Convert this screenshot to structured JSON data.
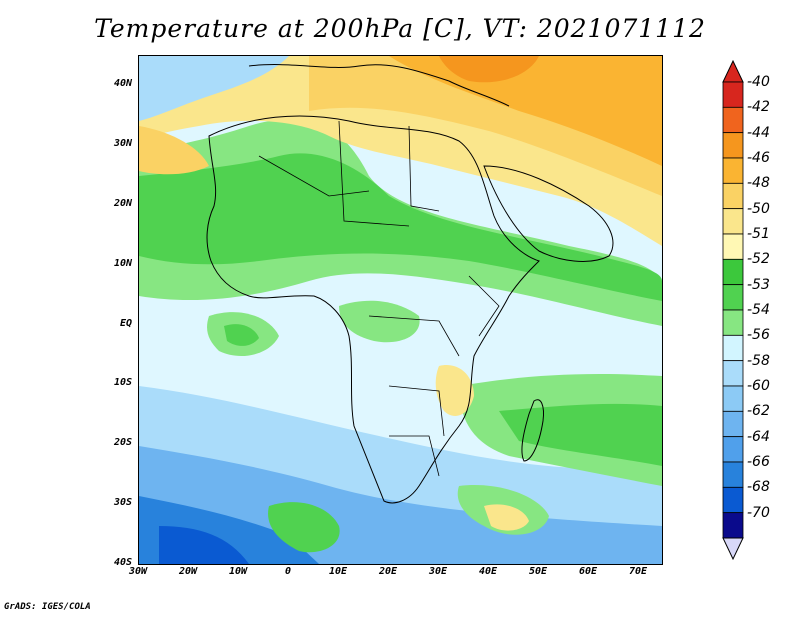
{
  "title": "Temperature at 200hPa [C], VT: 2021071112",
  "credit": "GrADS: IGES/COLA",
  "lat_labels": [
    "40N",
    "30N",
    "20N",
    "10N",
    "EQ",
    "10S",
    "20S",
    "30S",
    "40S"
  ],
  "lon_labels": [
    "30W",
    "20W",
    "10W",
    "0",
    "10E",
    "20E",
    "30E",
    "40E",
    "50E",
    "60E",
    "70E"
  ],
  "colorbar": {
    "labels": [
      "-40",
      "-42",
      "-44",
      "-46",
      "-48",
      "-50",
      "-51",
      "-52",
      "-53",
      "-54",
      "-56",
      "-58",
      "-60",
      "-62",
      "-64",
      "-66",
      "-68",
      "-70"
    ],
    "colors": [
      "#d7261e",
      "#f0641e",
      "#f5961e",
      "#fab432",
      "#fad264",
      "#fae68c",
      "#fff8b4",
      "#3cc83c",
      "#50d250",
      "#87e682",
      "#d2f5ff",
      "#aadcfa",
      "#8ccaf5",
      "#6eb4f0",
      "#50a0eb",
      "#2882dc",
      "#0a5ad2",
      "#0a0a8c"
    ]
  },
  "map": {
    "type": "filled-contour",
    "variable": "Temperature at 200hPa",
    "units": "C",
    "valid_time": "2021071112",
    "lon_range": [
      "30W",
      "75E"
    ],
    "lat_range": [
      "40S",
      "45N"
    ]
  }
}
